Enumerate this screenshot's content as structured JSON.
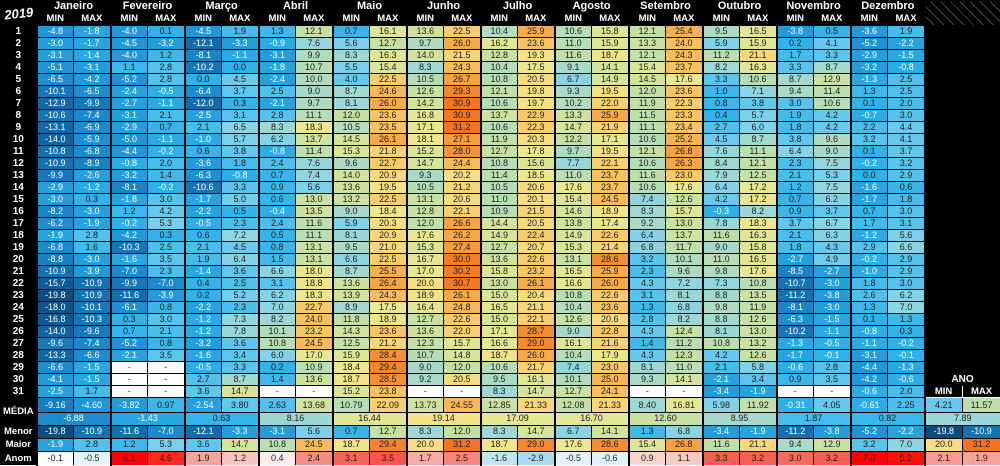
{
  "year": "2019",
  "months": [
    "Janeiro",
    "Fevereiro",
    "Março",
    "Abril",
    "Maio",
    "Junho",
    "Julho",
    "Agosto",
    "Setembro",
    "Outubro",
    "Novembro",
    "Dezembro"
  ],
  "labels": {
    "min": "MIN",
    "max": "MAX"
  },
  "ano": {
    "label": "ANO"
  },
  "days": [
    {
      "day": "1",
      "temps": [
        -4.8,
        -1.8,
        -4.0,
        0.1,
        -4.5,
        1.9,
        1.3,
        12.1,
        0.7,
        16.1,
        13.6,
        22.5,
        10.4,
        25.9,
        10.6,
        15.8,
        12.1,
        25.4,
        9.5,
        16.5,
        -3.8,
        0.5,
        -3.6,
        1.9
      ]
    },
    {
      "day": "2",
      "temps": [
        -3.0,
        -1.7,
        -4.5,
        -3.2,
        -12.1,
        -3.3,
        -0.9,
        7.6,
        5.6,
        12.7,
        9.7,
        26.0,
        16.2,
        23.6,
        11.0,
        15.9,
        13.3,
        24.0,
        5.9,
        15.9,
        0.2,
        4.1,
        -5.2,
        -2.2
      ]
    },
    {
      "day": "3",
      "temps": [
        -3.1,
        -1.4,
        -4.0,
        1.2,
        -8.1,
        -1.1,
        -3.1,
        9.9,
        8.3,
        16.3,
        14.0,
        21.5,
        12.8,
        19.3,
        11.6,
        18.7,
        12.1,
        24.3,
        11.2,
        21.1,
        1.7,
        3.3,
        -2.9,
        -1.5
      ]
    },
    {
      "day": "4",
      "temps": [
        -5.1,
        -3.1,
        1.1,
        2.8,
        -10.2,
        0.0,
        -1.8,
        10.7,
        5.5,
        15.4,
        8.3,
        24.3,
        10.4,
        17.5,
        9.1,
        14.1,
        15.4,
        23.7,
        8.2,
        16.3,
        3.3,
        8.7,
        -3.2,
        -0.8
      ]
    },
    {
      "day": "5",
      "temps": [
        -6.5,
        -4.2,
        -5.2,
        2.8,
        0.0,
        4.5,
        -2.4,
        10.0,
        4.0,
        22.5,
        10.5,
        26.7,
        10.8,
        20.5,
        6.7,
        14.9,
        14.5,
        17.6,
        3.3,
        10.6,
        8.7,
        12.9,
        -1.3,
        2.5
      ]
    },
    {
      "day": "6",
      "temps": [
        -10.1,
        -6.5,
        -2.4,
        -0.5,
        -6.4,
        3.7,
        2.5,
        9.0,
        8.7,
        24.6,
        12.6,
        29.3,
        12.1,
        19.8,
        9.3,
        19.5,
        12.0,
        23.6,
        1.0,
        7.1,
        9.4,
        11.4,
        1.3,
        2.5
      ]
    },
    {
      "day": "7",
      "temps": [
        -12.9,
        -9.9,
        -2.7,
        -1.1,
        -12.0,
        0.3,
        -2.1,
        9.7,
        8.1,
        26.0,
        14.2,
        30.9,
        10.6,
        19.7,
        10.2,
        22.0,
        11.9,
        22.3,
        0.8,
        3.8,
        3.0,
        10.6,
        0.1,
        2.0
      ]
    },
    {
      "day": "8",
      "temps": [
        -10.6,
        -7.4,
        -3.1,
        2.1,
        -2.5,
        3.1,
        2.8,
        11.1,
        12.0,
        23.6,
        16.8,
        30.9,
        13.7,
        22.9,
        13.3,
        25.9,
        11.5,
        23.3,
        0.4,
        5.7,
        1.9,
        4.2,
        -0.7,
        3.0
      ]
    },
    {
      "day": "9",
      "temps": [
        -13.1,
        -6.9,
        -2.9,
        0.7,
        2.1,
        6.5,
        8.3,
        18.3,
        10.5,
        23.5,
        17.1,
        31.2,
        10.6,
        22.3,
        14.7,
        21.9,
        11.1,
        23.4,
        2.7,
        6.0,
        1.8,
        4.2,
        2.2,
        4.4
      ]
    },
    {
      "day": "10",
      "temps": [
        -14.0,
        -5.9,
        -5.0,
        -1.1,
        -1.0,
        5.7,
        6.2,
        13.7,
        14.5,
        26.1,
        18.1,
        27.1,
        11.9,
        20.3,
        12.2,
        17.1,
        10.6,
        25.2,
        4.5,
        8.7,
        3.8,
        9.6,
        3.2,
        4.1
      ]
    },
    {
      "day": "11",
      "temps": [
        -10.8,
        -6.8,
        -4.4,
        -0.2,
        0.6,
        3.8,
        -0.8,
        11.4,
        15.3,
        21.8,
        15.2,
        28.0,
        12.7,
        17.8,
        9.7,
        19.5,
        12.1,
        26.8,
        7.6,
        11.1,
        6.4,
        9.0,
        0.1,
        3.7
      ]
    },
    {
      "day": "12",
      "temps": [
        -10.9,
        -8.9,
        -0.8,
        2.0,
        -3.6,
        1.8,
        2.4,
        7.6,
        9.6,
        22.7,
        14.7,
        24.4,
        10.8,
        15.6,
        7.7,
        22.1,
        10.6,
        26.3,
        8.4,
        12.1,
        2.3,
        7.5,
        -0.2,
        3.2
      ]
    },
    {
      "day": "13",
      "temps": [
        -9.9,
        -2.6,
        -3.2,
        1.4,
        -6.3,
        -0.8,
        0.7,
        7.4,
        14.0,
        20.9,
        9.3,
        20.2,
        11.4,
        18.5,
        11.0,
        23.7,
        11.6,
        23.0,
        7.9,
        12.5,
        2.1,
        5.3,
        0.0,
        2.9
      ]
    },
    {
      "day": "14",
      "temps": [
        -2.9,
        -1.2,
        -8.1,
        -0.2,
        -10.6,
        3.3,
        0.9,
        5.6,
        13.6,
        19.5,
        10.5,
        21.2,
        10.5,
        20.6,
        17.6,
        23.7,
        10.6,
        17.6,
        6.4,
        17.2,
        1.2,
        7.5,
        -1.6,
        0.6
      ]
    },
    {
      "day": "15",
      "temps": [
        -3.0,
        0.3,
        -1.8,
        3.0,
        -1.7,
        5.0,
        0.6,
        13.0,
        13.2,
        22.5,
        13.1,
        20.6,
        11.0,
        20.1,
        15.4,
        24.5,
        7.4,
        12.6,
        4.2,
        17.2,
        0.7,
        6.2,
        -1.7,
        1.8
      ]
    },
    {
      "day": "16",
      "temps": [
        -8.2,
        -3.0,
        1.2,
        4.2,
        -2.2,
        0.5,
        -0.4,
        13.5,
        9.0,
        18.4,
        12.8,
        22.1,
        10.9,
        21.5,
        14.6,
        18.9,
        8.3,
        15.7,
        -0.3,
        8.2,
        0.9,
        3.7,
        0.7,
        3.0
      ]
    },
    {
      "day": "17",
      "temps": [
        -6.2,
        -1.9,
        -0.2,
        5.3,
        -0.5,
        2.3,
        2.4,
        11.6,
        5.9,
        20.3,
        12.0,
        26.6,
        14.4,
        20.5,
        13.8,
        17.4,
        9.2,
        13.0,
        7.8,
        18.3,
        3.7,
        6.7,
        1.7,
        3.1
      ]
    },
    {
      "day": "18",
      "temps": [
        -1.9,
        2.8,
        -4.2,
        0.3,
        0.6,
        7.2,
        0.5,
        11.1,
        8.1,
        20.9,
        17.6,
        26.2,
        14.9,
        22.4,
        14.9,
        22.6,
        6.4,
        13.7,
        11.6,
        16.3,
        2.1,
        6.3,
        -1.2,
        5.6
      ]
    },
    {
      "day": "19",
      "temps": [
        -6.8,
        1.6,
        -10.3,
        2.5,
        2.1,
        4.5,
        0.8,
        13.1,
        9.5,
        21.0,
        15.3,
        27.4,
        12.7,
        20.7,
        15.3,
        21.4,
        6.8,
        11.7,
        9.0,
        15.8,
        1.8,
        4.3,
        2.9,
        6.6
      ]
    },
    {
      "day": "20",
      "temps": [
        -8.8,
        -3.0,
        -1.6,
        3.5,
        1.9,
        6.4,
        1.5,
        13.1,
        6.6,
        22.5,
        16.7,
        30.0,
        13.6,
        22.6,
        13.1,
        28.6,
        3.2,
        10.1,
        11.0,
        16.5,
        -2.7,
        4.9,
        -0.2,
        2.9
      ]
    },
    {
      "day": "21",
      "temps": [
        -10.9,
        -3.9,
        -7.0,
        2.3,
        -1.4,
        3.6,
        6.6,
        18.0,
        8.7,
        25.5,
        17.0,
        30.2,
        15.8,
        23.2,
        16.5,
        25.9,
        2.3,
        9.6,
        9.8,
        17.6,
        -8.5,
        -2.7,
        -1.0,
        2.9
      ]
    },
    {
      "day": "22",
      "temps": [
        -15.7,
        -10.9,
        -9.9,
        -7.0,
        0.4,
        2.5,
        3.1,
        18.8,
        13.6,
        26.4,
        20.0,
        30.7,
        13.0,
        26.1,
        16.6,
        26.0,
        4.3,
        7.2,
        7.3,
        10.8,
        -10.7,
        -3.0,
        1.8,
        3.0
      ]
    },
    {
      "day": "23",
      "temps": [
        -19.8,
        -10.9,
        -11.6,
        -3.9,
        0.2,
        5.2,
        6.2,
        18.3,
        13.9,
        24.3,
        18.9,
        26.1,
        15.0,
        20.4,
        10.8,
        22.6,
        3.1,
        8.1,
        8.8,
        13.5,
        -11.2,
        -3.8,
        2.6,
        6.2
      ]
    },
    {
      "day": "24",
      "temps": [
        -18.0,
        -10.1,
        -6.1,
        0.8,
        -2.2,
        2.3,
        7.0,
        22.7,
        8.9,
        17.5,
        16.4,
        24.8,
        16.5,
        21.1,
        10.4,
        23.6,
        1.3,
        6.8,
        9.8,
        11.9,
        -8.1,
        -3.0,
        1.3,
        7.0
      ]
    },
    {
      "day": "25",
      "temps": [
        -16.8,
        -10.3,
        0.3,
        3.0,
        -1.2,
        7.3,
        8.2,
        24.0,
        11.8,
        18.9,
        12.7,
        22.6,
        15.0,
        22.1,
        12.6,
        20.6,
        2.8,
        8.2,
        8.8,
        12.6,
        -6.3,
        -1.5,
        0.1,
        1.3
      ]
    },
    {
      "day": "26",
      "temps": [
        -14.0,
        -9.6,
        0.7,
        2.1,
        -1.2,
        7.8,
        10.1,
        23.2,
        14.3,
        23.6,
        13.6,
        22.0,
        17.1,
        28.7,
        9.0,
        22.8,
        4.3,
        12.4,
        8.1,
        13.0,
        -10.2,
        -1.1,
        -0.8,
        0.3
      ]
    },
    {
      "day": "27",
      "temps": [
        -9.6,
        -7.4,
        -5.2,
        0.8,
        -3.2,
        3.6,
        10.8,
        24.5,
        12.5,
        21.2,
        12.3,
        15.7,
        16.6,
        29.0,
        16.1,
        21.6,
        1.4,
        11.2,
        10.8,
        13.2,
        -1.3,
        -0.5,
        -1.1,
        -0.2
      ]
    },
    {
      "day": "28",
      "temps": [
        -13.3,
        -6.6,
        -2.1,
        3.5,
        -1.6,
        3.4,
        6.0,
        17.0,
        15.9,
        28.4,
        10.7,
        14.8,
        18.7,
        26.0,
        10.4,
        17.9,
        4.3,
        12.3,
        4.2,
        12.6,
        -1.7,
        -0.1,
        -3.1,
        -0.1
      ]
    },
    {
      "day": "29",
      "temps": [
        -6.6,
        -1.5,
        null,
        null,
        -0.5,
        3.3,
        0.2,
        10.9,
        18.4,
        29.4,
        9.0,
        12.0,
        10.6,
        21.7,
        7.4,
        23.0,
        8.1,
        11.0,
        2.1,
        5.8,
        -0.6,
        2.8,
        -4.4,
        -1.3
      ]
    },
    {
      "day": "30",
      "temps": [
        -4.1,
        -1.5,
        null,
        null,
        2.7,
        8.7,
        1.4,
        13.6,
        18.7,
        28.5,
        9.2,
        20.5,
        9.5,
        16.1,
        10.1,
        25.0,
        9.3,
        14.1,
        -2.1,
        3.4,
        0.9,
        3.5,
        -4.2,
        -0.6
      ]
    },
    {
      "day": "31",
      "temps": [
        -2.5,
        1.7,
        null,
        null,
        3.6,
        14.7,
        null,
        null,
        15.2,
        23.8,
        null,
        null,
        8.3,
        14.7,
        12.7,
        24.1,
        null,
        null,
        -3.4,
        -1.9,
        null,
        null,
        -0.6,
        2.0
      ]
    }
  ],
  "footer": {
    "media_label": "MÉDIA",
    "menor_label": "Menor",
    "maior_label": "Maior",
    "anom_label": "Anom",
    "media": [
      -9.16,
      -4.6,
      -3.82,
      0.97,
      -2.54,
      3.8,
      2.63,
      13.68,
      10.79,
      22.09,
      13.73,
      24.55,
      12.85,
      21.33,
      12.08,
      21.33,
      8.4,
      16.81,
      5.98,
      11.92,
      -0.31,
      4.05,
      -0.61,
      2.25
    ],
    "media_ano": [
      4.21,
      11.57
    ],
    "media_combined": [
      -6.88,
      -1.43,
      0.63,
      8.16,
      16.44,
      19.14,
      17.09,
      16.7,
      12.6,
      8.95,
      1.87,
      0.82
    ],
    "media_combined_ano": 7.89,
    "menor": [
      -19.8,
      -10.9,
      -11.6,
      -7.0,
      -12.1,
      -3.3,
      -3.1,
      5.6,
      0.7,
      12.7,
      8.3,
      12.0,
      8.3,
      14.7,
      6.7,
      14.1,
      1.3,
      6.8,
      -3.4,
      -1.9,
      -11.2,
      -3.8,
      -5.2,
      -2.2
    ],
    "menor_ano": [
      -19.8,
      -10.9
    ],
    "maior": [
      -1.9,
      2.8,
      1.2,
      5.3,
      3.6,
      14.7,
      10.8,
      24.5,
      18.7,
      29.4,
      20.0,
      31.2,
      18.7,
      29.0,
      17.6,
      28.6,
      15.4,
      26.8,
      11.6,
      21.1,
      9.4,
      12.9,
      3.2,
      7.0
    ],
    "maior_ano": [
      20.0,
      31.2
    ],
    "anom": [
      -0.1,
      -0.5,
      6.1,
      4.6,
      1.9,
      1.2,
      0.4,
      2.4,
      3.1,
      3.5,
      1.7,
      2.5,
      -1.6,
      -2.9,
      -0.5,
      -0.6,
      0.9,
      1.1,
      3.3,
      3.2,
      3.0,
      3.2,
      7.0,
      5.2
    ],
    "anom_ano": [
      2.1,
      1.9
    ]
  },
  "colors": {
    "header_bg": "#000000",
    "empty_bg": "#ffffff",
    "hatch_line": "#454545",
    "text_light": "#ffffff",
    "text_dark": "#1f1f1f",
    "temp_scale": [
      [
        -20,
        "#0a4d80"
      ],
      [
        -15,
        "#0e5f9c"
      ],
      [
        -11,
        "#1471b0"
      ],
      [
        -8,
        "#1a85c8"
      ],
      [
        -5,
        "#2094d6"
      ],
      [
        -2,
        "#27a3de"
      ],
      [
        0,
        "#2fb1e9"
      ],
      [
        2,
        "#47bdeb"
      ],
      [
        4,
        "#62c9ee"
      ],
      [
        6,
        "#80d2e9"
      ],
      [
        8,
        "#9ad7d8"
      ],
      [
        10,
        "#afdcbe"
      ],
      [
        12,
        "#c2e0a6"
      ],
      [
        14,
        "#d1e39c"
      ],
      [
        16,
        "#dfe695"
      ],
      [
        18,
        "#ece78e"
      ],
      [
        20,
        "#f6df83"
      ],
      [
        22,
        "#f9d071"
      ],
      [
        24,
        "#f9bf5e"
      ],
      [
        26,
        "#f8aa49"
      ],
      [
        28,
        "#f69338"
      ],
      [
        30,
        "#f47e28"
      ],
      [
        32,
        "#f26c20"
      ]
    ],
    "anom_scale": [
      [
        -3,
        "#a6d9f0"
      ],
      [
        -1.5,
        "#c2e5f5"
      ],
      [
        -0.7,
        "#dbeffa"
      ],
      [
        -0.2,
        "#f2f9fd"
      ],
      [
        0,
        "#ffffff"
      ],
      [
        0.4,
        "#fdedea"
      ],
      [
        1,
        "#fbcfc9"
      ],
      [
        1.7,
        "#f9ada5"
      ],
      [
        2.4,
        "#f78d82"
      ],
      [
        3.2,
        "#f56052"
      ],
      [
        4,
        "#f6473c"
      ],
      [
        5,
        "#fc1507"
      ],
      [
        6,
        "#ff0000"
      ],
      [
        8,
        "#ff0000"
      ]
    ]
  }
}
